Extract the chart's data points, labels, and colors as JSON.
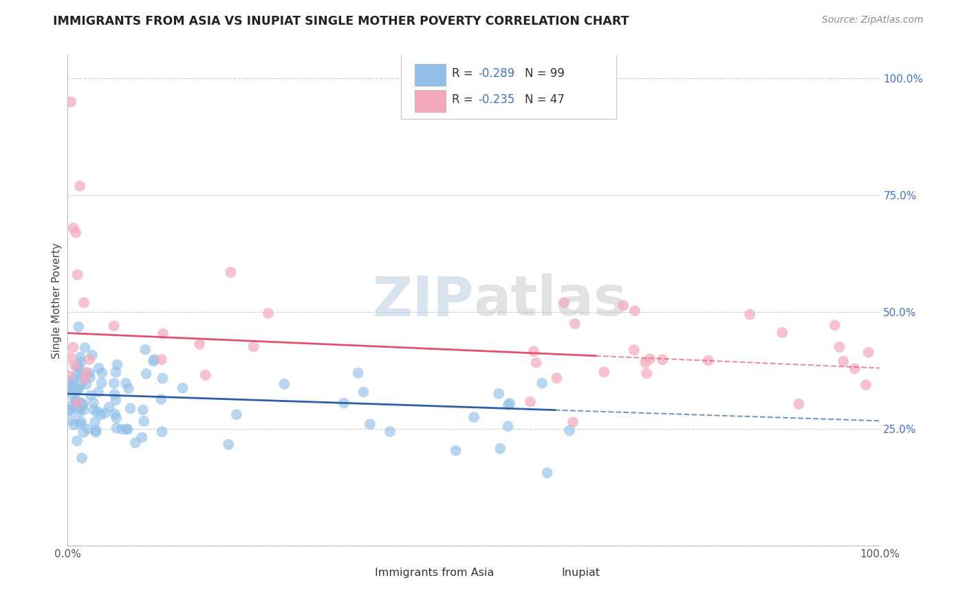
{
  "title": "IMMIGRANTS FROM ASIA VS INUPIAT SINGLE MOTHER POVERTY CORRELATION CHART",
  "source": "Source: ZipAtlas.com",
  "ylabel": "Single Mother Poverty",
  "y_ticks": [
    0.0,
    0.25,
    0.5,
    0.75,
    1.0
  ],
  "y_tick_labels": [
    "",
    "25.0%",
    "50.0%",
    "75.0%",
    "100.0%"
  ],
  "xlim": [
    0.0,
    1.0
  ],
  "ylim": [
    0.0,
    1.05
  ],
  "blue_R": -0.289,
  "blue_N": 99,
  "pink_R": -0.235,
  "pink_N": 47,
  "blue_color": "#92C0E8",
  "pink_color": "#F4A8BC",
  "blue_line_color": "#2E5FA3",
  "pink_line_color": "#E05070",
  "watermark_zip_color": "#B8CDE0",
  "watermark_atlas_color": "#C0C0C0",
  "grid_color": "#CCCCCC",
  "title_color": "#222222",
  "source_color": "#888888",
  "ytick_color": "#4472C4",
  "legend_edge_color": "#CCCCCC"
}
